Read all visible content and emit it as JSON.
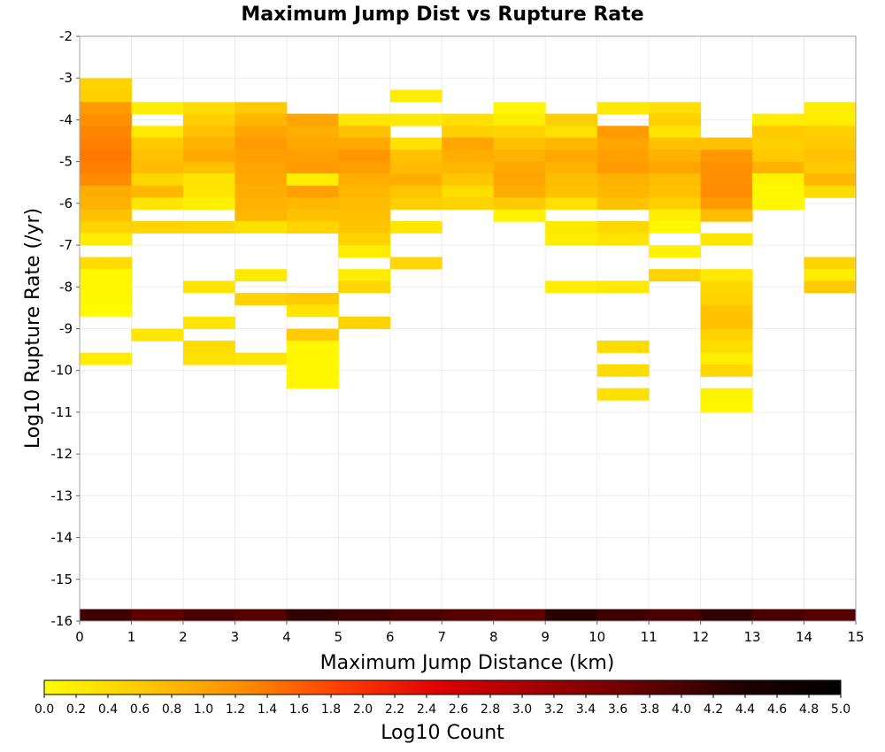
{
  "chart_data": {
    "type": "heatmap",
    "title": "Maximum Jump Dist vs Rupture Rate",
    "xlabel": "Maximum Jump Distance (km)",
    "ylabel": "Log10 Rupture Rate (/yr)",
    "xlim": [
      0,
      15
    ],
    "ylim": [
      -16,
      -2
    ],
    "x_ticks": [
      0,
      1,
      2,
      3,
      4,
      5,
      6,
      7,
      8,
      9,
      10,
      11,
      12,
      13,
      14,
      15
    ],
    "y_ticks": [
      -2,
      -3,
      -4,
      -5,
      -6,
      -7,
      -8,
      -9,
      -10,
      -11,
      -12,
      -13,
      -14,
      -15,
      -16
    ],
    "grid": true,
    "colorbar": {
      "label": "Log10 Count",
      "range": [
        0,
        5
      ],
      "ticks": [
        "0.0",
        "0.2",
        "0.4",
        "0.6",
        "0.8",
        "1.0",
        "1.2",
        "1.4",
        "1.6",
        "1.8",
        "2.0",
        "2.2",
        "2.4",
        "2.6",
        "2.8",
        "3.0",
        "3.2",
        "3.4",
        "3.6",
        "3.8",
        "4.0",
        "4.2",
        "4.4",
        "4.6",
        "4.8",
        "5.0"
      ],
      "colors": [
        "#ffff00",
        "#ffc800",
        "#ff8c00",
        "#ff3c00",
        "#dc0000",
        "#a00000",
        "#640000",
        "#200000",
        "#000000"
      ]
    },
    "cell_width_km": 1,
    "cell_height_log10": 0.2857,
    "cells_note": "columns: x bin start (km); each cell [y_bottom_log10_rate, log10_count]",
    "columns": [
      {
        "x": 0,
        "cells": [
          [
            -3.29,
            0.5
          ],
          [
            -3.57,
            0.55
          ],
          [
            -3.86,
            1.1
          ],
          [
            -4.14,
            1.2
          ],
          [
            -4.43,
            1.3
          ],
          [
            -4.71,
            1.35
          ],
          [
            -5.0,
            1.4
          ],
          [
            -5.29,
            1.35
          ],
          [
            -5.57,
            1.25
          ],
          [
            -5.86,
            0.9
          ],
          [
            -6.14,
            0.85
          ],
          [
            -6.43,
            0.7
          ],
          [
            -6.71,
            0.5
          ],
          [
            -7.0,
            0.2
          ],
          [
            -7.57,
            0.4
          ],
          [
            -7.86,
            0.1
          ],
          [
            -8.14,
            0.1
          ],
          [
            -8.43,
            0.1
          ],
          [
            -8.71,
            0.05
          ],
          [
            -9.86,
            0.2
          ],
          [
            -16.0,
            4.1
          ]
        ]
      },
      {
        "x": 1,
        "cells": [
          [
            -3.86,
            0.2
          ],
          [
            -4.43,
            0.25
          ],
          [
            -4.71,
            0.6
          ],
          [
            -5.0,
            0.7
          ],
          [
            -5.29,
            0.75
          ],
          [
            -5.57,
            0.45
          ],
          [
            -5.86,
            0.8
          ],
          [
            -6.14,
            0.3
          ],
          [
            -6.71,
            0.5
          ],
          [
            -9.29,
            0.3
          ],
          [
            -16.0,
            3.8
          ]
        ]
      },
      {
        "x": 2,
        "cells": [
          [
            -3.86,
            0.4
          ],
          [
            -4.14,
            0.55
          ],
          [
            -4.43,
            0.7
          ],
          [
            -4.71,
            0.85
          ],
          [
            -5.0,
            0.95
          ],
          [
            -5.29,
            0.7
          ],
          [
            -5.57,
            0.3
          ],
          [
            -5.86,
            0.3
          ],
          [
            -6.14,
            0.15
          ],
          [
            -6.71,
            0.45
          ],
          [
            -8.14,
            0.3
          ],
          [
            -9.0,
            0.3
          ],
          [
            -9.57,
            0.4
          ],
          [
            -9.86,
            0.35
          ],
          [
            -16.0,
            4.0
          ]
        ]
      },
      {
        "x": 3,
        "cells": [
          [
            -3.86,
            0.6
          ],
          [
            -4.14,
            0.8
          ],
          [
            -4.43,
            1.0
          ],
          [
            -4.71,
            1.1
          ],
          [
            -5.0,
            1.05
          ],
          [
            -5.29,
            1.0
          ],
          [
            -5.57,
            0.95
          ],
          [
            -5.86,
            0.9
          ],
          [
            -6.14,
            0.85
          ],
          [
            -6.43,
            0.8
          ],
          [
            -6.71,
            0.35
          ],
          [
            -7.86,
            0.25
          ],
          [
            -8.43,
            0.5
          ],
          [
            -9.86,
            0.3
          ],
          [
            -16.0,
            3.9
          ]
        ]
      },
      {
        "x": 4,
        "cells": [
          [
            -4.14,
            1.0
          ],
          [
            -4.43,
            0.9
          ],
          [
            -4.71,
            0.95
          ],
          [
            -5.0,
            1.05
          ],
          [
            -5.29,
            1.1
          ],
          [
            -5.57,
            0.2
          ],
          [
            -5.86,
            1.05
          ],
          [
            -6.14,
            0.8
          ],
          [
            -6.43,
            0.7
          ],
          [
            -6.71,
            0.5
          ],
          [
            -8.43,
            0.6
          ],
          [
            -8.71,
            0.3
          ],
          [
            -9.29,
            0.6
          ],
          [
            -9.57,
            0.1
          ],
          [
            -9.86,
            0.1
          ],
          [
            -10.14,
            0.1
          ],
          [
            -10.43,
            0.1
          ],
          [
            -16.0,
            4.2
          ]
        ]
      },
      {
        "x": 5,
        "cells": [
          [
            -4.14,
            0.3
          ],
          [
            -4.43,
            0.7
          ],
          [
            -4.71,
            0.95
          ],
          [
            -5.0,
            1.15
          ],
          [
            -5.29,
            1.05
          ],
          [
            -5.57,
            0.9
          ],
          [
            -5.86,
            0.8
          ],
          [
            -6.14,
            0.75
          ],
          [
            -6.43,
            0.7
          ],
          [
            -6.71,
            0.65
          ],
          [
            -7.0,
            0.5
          ],
          [
            -7.29,
            0.2
          ],
          [
            -7.86,
            0.2
          ],
          [
            -8.14,
            0.45
          ],
          [
            -9.0,
            0.5
          ],
          [
            -16.0,
            4.1
          ]
        ]
      },
      {
        "x": 6,
        "cells": [
          [
            -3.57,
            0.2
          ],
          [
            -4.14,
            0.25
          ],
          [
            -4.71,
            0.35
          ],
          [
            -5.0,
            0.7
          ],
          [
            -5.29,
            0.75
          ],
          [
            -5.57,
            0.9
          ],
          [
            -5.86,
            0.65
          ],
          [
            -6.14,
            0.55
          ],
          [
            -6.71,
            0.3
          ],
          [
            -7.57,
            0.45
          ],
          [
            -16.0,
            4.0
          ]
        ]
      },
      {
        "x": 7,
        "cells": [
          [
            -4.14,
            0.35
          ],
          [
            -4.43,
            0.55
          ],
          [
            -4.71,
            1.0
          ],
          [
            -5.0,
            0.9
          ],
          [
            -5.29,
            0.8
          ],
          [
            -5.57,
            0.65
          ],
          [
            -5.86,
            0.4
          ],
          [
            -6.14,
            0.5
          ],
          [
            -16.0,
            3.9
          ]
        ]
      },
      {
        "x": 8,
        "cells": [
          [
            -3.86,
            0.1
          ],
          [
            -4.14,
            0.2
          ],
          [
            -4.43,
            0.5
          ],
          [
            -4.71,
            0.7
          ],
          [
            -5.0,
            0.85
          ],
          [
            -5.29,
            0.95
          ],
          [
            -5.57,
            1.0
          ],
          [
            -5.86,
            0.9
          ],
          [
            -6.14,
            0.6
          ],
          [
            -6.43,
            0.15
          ],
          [
            -16.0,
            3.8
          ]
        ]
      },
      {
        "x": 9,
        "cells": [
          [
            -4.14,
            0.55
          ],
          [
            -4.43,
            0.35
          ],
          [
            -4.71,
            0.8
          ],
          [
            -5.0,
            0.95
          ],
          [
            -5.29,
            0.85
          ],
          [
            -5.57,
            0.75
          ],
          [
            -5.86,
            0.7
          ],
          [
            -6.14,
            0.35
          ],
          [
            -6.71,
            0.25
          ],
          [
            -7.0,
            0.2
          ],
          [
            -8.14,
            0.2
          ],
          [
            -16.0,
            4.3
          ]
        ]
      },
      {
        "x": 10,
        "cells": [
          [
            -3.86,
            0.25
          ],
          [
            -4.43,
            1.1
          ],
          [
            -4.71,
            1.0
          ],
          [
            -5.0,
            1.05
          ],
          [
            -5.29,
            1.1
          ],
          [
            -5.57,
            0.85
          ],
          [
            -5.86,
            0.8
          ],
          [
            -6.14,
            0.7
          ],
          [
            -6.71,
            0.45
          ],
          [
            -7.0,
            0.3
          ],
          [
            -8.14,
            0.25
          ],
          [
            -9.57,
            0.4
          ],
          [
            -10.14,
            0.4
          ],
          [
            -10.71,
            0.35
          ],
          [
            -16.0,
            4.1
          ]
        ]
      },
      {
        "x": 11,
        "cells": [
          [
            -3.86,
            0.35
          ],
          [
            -4.14,
            0.55
          ],
          [
            -4.43,
            0.3
          ],
          [
            -4.71,
            0.7
          ],
          [
            -5.0,
            0.85
          ],
          [
            -5.29,
            1.0
          ],
          [
            -5.57,
            0.75
          ],
          [
            -5.86,
            0.7
          ],
          [
            -6.14,
            0.55
          ],
          [
            -6.43,
            0.2
          ],
          [
            -6.71,
            0.1
          ],
          [
            -7.29,
            0.15
          ],
          [
            -7.86,
            0.5
          ],
          [
            -16.0,
            4.0
          ]
        ]
      },
      {
        "x": 12,
        "cells": [
          [
            -4.71,
            0.7
          ],
          [
            -5.0,
            1.15
          ],
          [
            -5.29,
            1.2
          ],
          [
            -5.57,
            1.2
          ],
          [
            -5.86,
            1.25
          ],
          [
            -6.14,
            1.1
          ],
          [
            -6.43,
            0.75
          ],
          [
            -7.0,
            0.3
          ],
          [
            -7.86,
            0.25
          ],
          [
            -8.14,
            0.45
          ],
          [
            -8.43,
            0.5
          ],
          [
            -8.71,
            0.65
          ],
          [
            -9.0,
            0.7
          ],
          [
            -9.29,
            0.5
          ],
          [
            -9.57,
            0.4
          ],
          [
            -9.86,
            0.2
          ],
          [
            -10.14,
            0.45
          ],
          [
            -10.71,
            0.15
          ],
          [
            -11.0,
            0.1
          ],
          [
            -16.0,
            4.2
          ]
        ]
      },
      {
        "x": 13,
        "cells": [
          [
            -4.14,
            0.2
          ],
          [
            -4.43,
            0.6
          ],
          [
            -4.71,
            0.55
          ],
          [
            -5.0,
            0.6
          ],
          [
            -5.29,
            0.85
          ],
          [
            -5.57,
            0.15
          ],
          [
            -5.86,
            0.1
          ],
          [
            -6.14,
            0.1
          ],
          [
            -16.0,
            4.0
          ]
        ]
      },
      {
        "x": 14,
        "cells": [
          [
            -3.86,
            0.2
          ],
          [
            -4.14,
            0.2
          ],
          [
            -4.43,
            0.55
          ],
          [
            -4.71,
            0.6
          ],
          [
            -5.0,
            0.7
          ],
          [
            -5.29,
            0.6
          ],
          [
            -5.57,
            0.8
          ],
          [
            -5.86,
            0.4
          ],
          [
            -7.57,
            0.5
          ],
          [
            -7.86,
            0.2
          ],
          [
            -8.14,
            0.6
          ],
          [
            -16.0,
            3.9
          ]
        ]
      }
    ]
  }
}
